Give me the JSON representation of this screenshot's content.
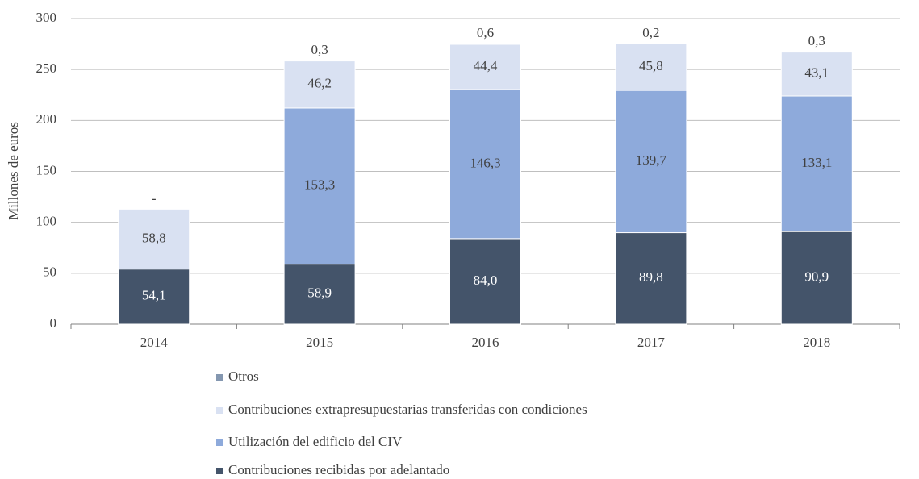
{
  "chart_data": {
    "type": "stacked_bar",
    "y_label": "Millones de euros",
    "categories": [
      "2014",
      "2015",
      "2016",
      "2017",
      "2018"
    ],
    "series": [
      {
        "name": "Contribuciones recibidas por adelantado",
        "color": "#44546a",
        "values": [
          54.1,
          58.9,
          84.0,
          89.8,
          90.9
        ],
        "value_labels": [
          "54,1",
          "58,9",
          "84,0",
          "89,8",
          "90,9"
        ]
      },
      {
        "name": "Utilización del edificio del CIV",
        "color": "#8eaadb",
        "values": [
          null,
          153.3,
          146.3,
          139.7,
          133.1
        ],
        "value_labels": [
          null,
          "153,3",
          "146,3",
          "139,7",
          "133,1"
        ]
      },
      {
        "name": "Contribuciones extrapresupuestarias transferidas con condiciones",
        "color": "#d9e1f2",
        "values": [
          58.8,
          46.2,
          44.4,
          45.8,
          43.1
        ],
        "value_labels": [
          "58,8",
          "46,2",
          "44,4",
          "45,8",
          "43,1"
        ]
      },
      {
        "name": "Otros",
        "color": "#8497b0",
        "values": [
          0,
          0.3,
          0.6,
          0.2,
          0.3
        ],
        "value_labels": [
          "-",
          "0,3",
          "0,6",
          "0,2",
          "0,3"
        ]
      }
    ],
    "ylim": [
      0,
      300
    ],
    "yticks": [
      0,
      50,
      100,
      150,
      200,
      250,
      300
    ],
    "grid": true
  }
}
